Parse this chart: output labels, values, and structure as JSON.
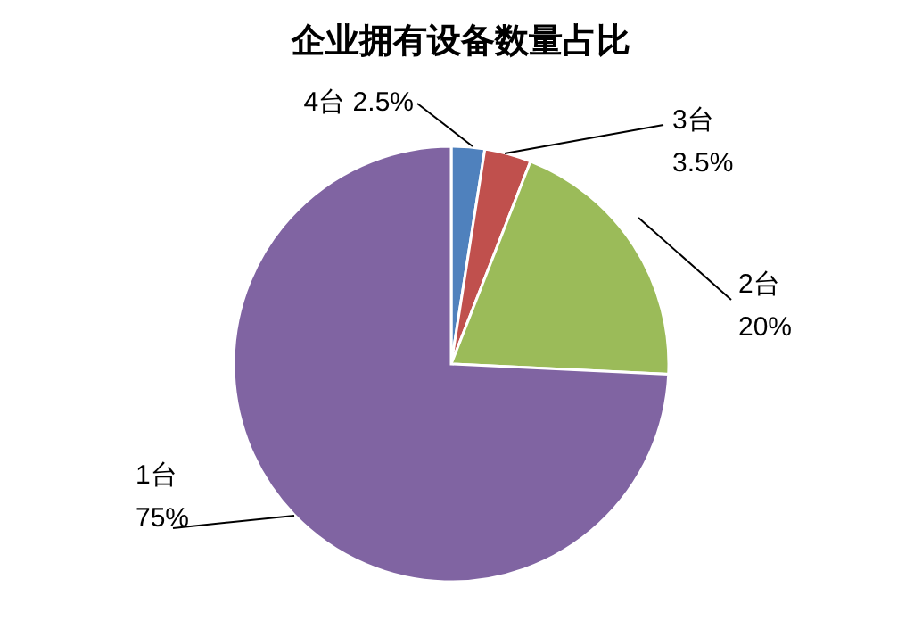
{
  "chart_data": {
    "type": "pie",
    "title": "企业拥有设备数量占比",
    "categories": [
      "4台",
      "3台",
      "2台",
      "1台"
    ],
    "values": [
      2.5,
      3.5,
      20,
      75
    ],
    "colors": [
      "#4f81bd",
      "#c0504d",
      "#9bbb59",
      "#8064a2"
    ],
    "value_labels": [
      "2.5%",
      "3.5%",
      "20%",
      "75%"
    ]
  }
}
